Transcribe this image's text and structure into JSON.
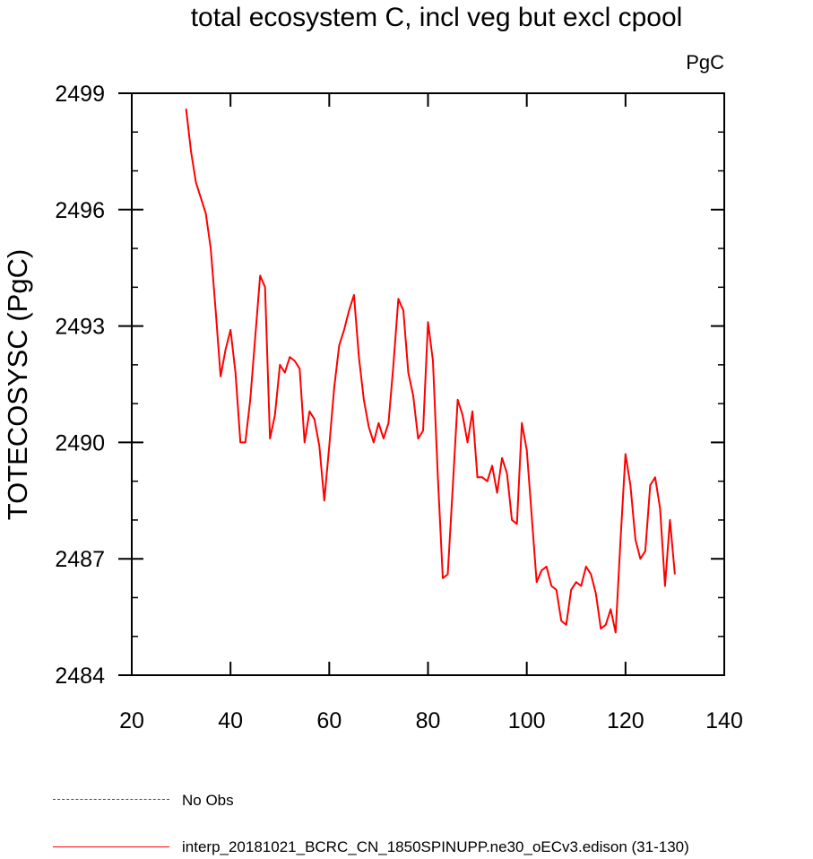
{
  "chart_data": {
    "type": "line",
    "title": "total ecosystem C, incl veg but excl cpool",
    "units_label": "PgC",
    "ylabel": "TOTECOSYSC  (PgC)",
    "xlabel": "",
    "xlim": [
      20,
      140
    ],
    "ylim": [
      2484,
      2499
    ],
    "xticks": [
      20,
      40,
      60,
      80,
      100,
      120,
      140
    ],
    "xtick_labels": [
      "20",
      "40",
      "60",
      "80",
      "100",
      "120",
      "140"
    ],
    "yticks": [
      2484,
      2487,
      2490,
      2493,
      2496,
      2499
    ],
    "ytick_labels": [
      "2484",
      "2487",
      "2490",
      "2493",
      "2496",
      "2499"
    ],
    "grid": false,
    "legend_position": "bottom-left",
    "series": [
      {
        "name": "interp_20181021_BCRC_CN_1850SPINUPP.ne30_oECv3.edison (31-130)",
        "color": "#ff0000",
        "style": "solid",
        "x": [
          31,
          32,
          33,
          34,
          35,
          36,
          37,
          38,
          39,
          40,
          41,
          42,
          43,
          44,
          45,
          46,
          47,
          48,
          49,
          50,
          51,
          52,
          53,
          54,
          55,
          56,
          57,
          58,
          59,
          60,
          61,
          62,
          63,
          64,
          65,
          66,
          67,
          68,
          69,
          70,
          71,
          72,
          73,
          74,
          75,
          76,
          77,
          78,
          79,
          80,
          81,
          82,
          83,
          84,
          85,
          86,
          87,
          88,
          89,
          90,
          91,
          92,
          93,
          94,
          95,
          96,
          97,
          98,
          99,
          100,
          101,
          102,
          103,
          104,
          105,
          106,
          107,
          108,
          109,
          110,
          111,
          112,
          113,
          114,
          115,
          116,
          117,
          118,
          119,
          120,
          121,
          122,
          123,
          124,
          125,
          126,
          127,
          128,
          129,
          130
        ],
        "values": [
          2498.6,
          2497.5,
          2496.7,
          2496.3,
          2495.9,
          2495.0,
          2493.4,
          2491.7,
          2492.4,
          2492.9,
          2491.8,
          2490.0,
          2490.0,
          2491.1,
          2492.7,
          2494.3,
          2494.0,
          2490.1,
          2490.7,
          2492.0,
          2491.8,
          2492.2,
          2492.1,
          2491.9,
          2490.0,
          2490.8,
          2490.6,
          2489.9,
          2488.5,
          2489.9,
          2491.4,
          2492.5,
          2492.9,
          2493.4,
          2493.8,
          2492.2,
          2491.1,
          2490.4,
          2490.0,
          2490.5,
          2490.1,
          2490.5,
          2492.0,
          2493.7,
          2493.4,
          2491.8,
          2491.2,
          2490.1,
          2490.3,
          2493.1,
          2492.1,
          2489.1,
          2486.5,
          2486.6,
          2488.8,
          2491.1,
          2490.7,
          2490.0,
          2490.8,
          2489.1,
          2489.1,
          2489.0,
          2489.4,
          2488.7,
          2489.6,
          2489.2,
          2488.0,
          2487.9,
          2490.5,
          2489.8,
          2488.1,
          2486.4,
          2486.7,
          2486.8,
          2486.3,
          2486.2,
          2485.4,
          2485.3,
          2486.2,
          2486.4,
          2486.3,
          2486.8,
          2486.6,
          2486.1,
          2485.2,
          2485.3,
          2485.7,
          2485.1,
          2487.5,
          2489.7,
          2488.9,
          2487.5,
          2487.0,
          2487.2,
          2488.9,
          2489.1,
          2488.3,
          2486.3,
          2488.0,
          2486.6
        ]
      }
    ],
    "legend": [
      {
        "label": "No Obs",
        "color": "#3333ff",
        "style": "dashed"
      },
      {
        "label": "interp_20181021_BCRC_CN_1850SPINUPP.ne30_oECv3.edison (31-130)",
        "color": "#ff0000",
        "style": "solid"
      }
    ]
  }
}
